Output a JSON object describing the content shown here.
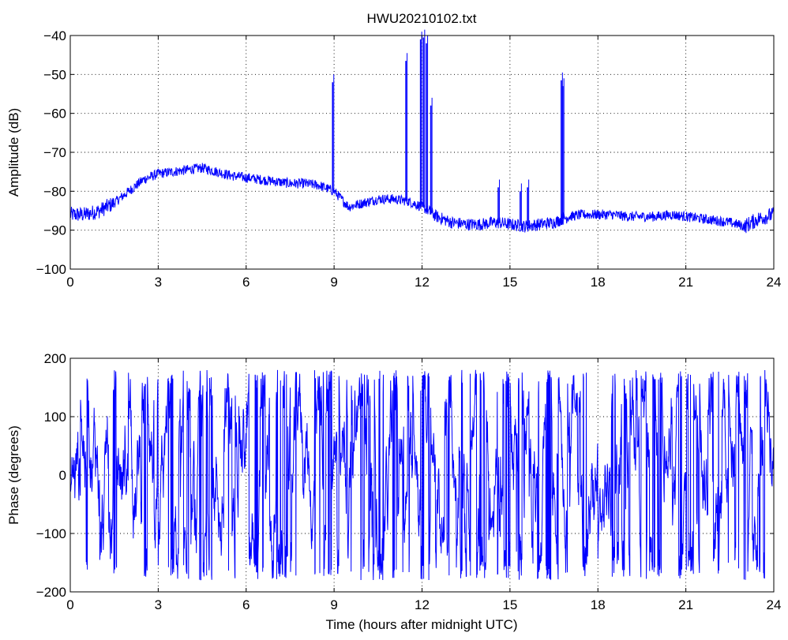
{
  "chart_data": [
    {
      "type": "line",
      "title": "HWU20210102.txt",
      "xlabel": "",
      "ylabel": "Amplitude (dB)",
      "xlim": [
        0,
        24
      ],
      "ylim": [
        -100,
        -40
      ],
      "xticks": [
        0,
        3,
        6,
        9,
        12,
        15,
        18,
        21,
        24
      ],
      "yticks": [
        -100,
        -90,
        -80,
        -70,
        -60,
        -50,
        -40
      ],
      "ytick_labels": [
        "−100",
        "−90",
        "−80",
        "−70",
        "−60",
        "−50",
        "−40"
      ],
      "grid": true,
      "color": "#0000ff",
      "series": [
        {
          "x": [
            0,
            0.5,
            1,
            1.5,
            2,
            2.5,
            3,
            3.5,
            4,
            4.5,
            5,
            5.5,
            6,
            6.5,
            7,
            7.5,
            8,
            8.5,
            9,
            9.5,
            10,
            10.5,
            11,
            11.5,
            12,
            12.5,
            13,
            13.5,
            14,
            14.5,
            15,
            15.5,
            16,
            16.5,
            17,
            17.5,
            18,
            18.5,
            19,
            19.5,
            20,
            20.5,
            21,
            21.5,
            22,
            22.5,
            23,
            23.5,
            24
          ],
          "values": [
            -86,
            -86,
            -85,
            -83,
            -80,
            -77,
            -75.5,
            -75,
            -74.5,
            -74,
            -75,
            -76,
            -76.5,
            -77,
            -77.5,
            -78,
            -78,
            -78.5,
            -80,
            -84,
            -83,
            -82,
            -82,
            -82.5,
            -84,
            -86.5,
            -88,
            -88.5,
            -88.5,
            -88,
            -88.5,
            -89,
            -88.5,
            -88,
            -86.5,
            -86,
            -86,
            -86,
            -86.5,
            -86.5,
            -86.5,
            -86,
            -86.5,
            -87,
            -87.5,
            -88,
            -89,
            -87,
            -86
          ],
          "spikes": [
            {
              "x": 8.95,
              "peak": -52
            },
            {
              "x": 11.45,
              "peak": -46.5
            },
            {
              "x": 11.95,
              "peak": -41
            },
            {
              "x": 12.05,
              "peak": -40.5
            },
            {
              "x": 12.15,
              "peak": -42
            },
            {
              "x": 12.3,
              "peak": -58
            },
            {
              "x": 14.6,
              "peak": -79
            },
            {
              "x": 15.35,
              "peak": -80
            },
            {
              "x": 15.6,
              "peak": -79
            },
            {
              "x": 16.75,
              "peak": -51.5
            },
            {
              "x": 16.8,
              "peak": -53
            }
          ]
        }
      ]
    },
    {
      "type": "line",
      "title": "",
      "xlabel": "Time (hours after midnight UTC)",
      "ylabel": "Phase (degrees)",
      "xlim": [
        0,
        24
      ],
      "ylim": [
        -200,
        200
      ],
      "xticks": [
        0,
        3,
        6,
        9,
        12,
        15,
        18,
        21,
        24
      ],
      "yticks": [
        -200,
        -100,
        0,
        100,
        200
      ],
      "ytick_labels": [
        "−200",
        "−100",
        "0",
        "100",
        "200"
      ],
      "grid": true,
      "color": "#0000ff",
      "series": [
        {
          "x_range": [
            0,
            24
          ],
          "values_range": [
            -180,
            180
          ],
          "wrapped": true
        }
      ]
    }
  ]
}
